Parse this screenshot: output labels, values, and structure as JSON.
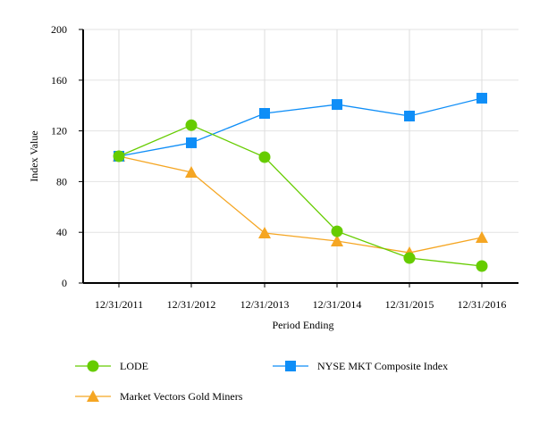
{
  "chart_data": {
    "type": "line",
    "title": "",
    "xlabel": "Period Ending",
    "ylabel": "Index Value",
    "ylim": [
      0,
      200
    ],
    "yticks": [
      0,
      40,
      80,
      120,
      160,
      200
    ],
    "grid": true,
    "legend_position": "bottom",
    "categories": [
      "12/31/2011",
      "12/31/2012",
      "12/31/2013",
      "12/31/2014",
      "12/31/2015",
      "12/31/2016"
    ],
    "series": [
      {
        "name": "LODE",
        "color": "#66cc00",
        "marker": "circle",
        "values": [
          100,
          124.5,
          99.3,
          40.8,
          19.7,
          13.4
        ]
      },
      {
        "name": "NYSE MKT Composite Index",
        "color": "#0f8ef7",
        "marker": "square",
        "values": [
          100,
          110.6,
          133.8,
          140.8,
          131.7,
          145.8
        ]
      },
      {
        "name": "Market Vectors Gold Miners",
        "color": "#f5a623",
        "marker": "triangle",
        "values": [
          100,
          87.3,
          39.4,
          33.1,
          23.9,
          35.9
        ]
      }
    ]
  }
}
